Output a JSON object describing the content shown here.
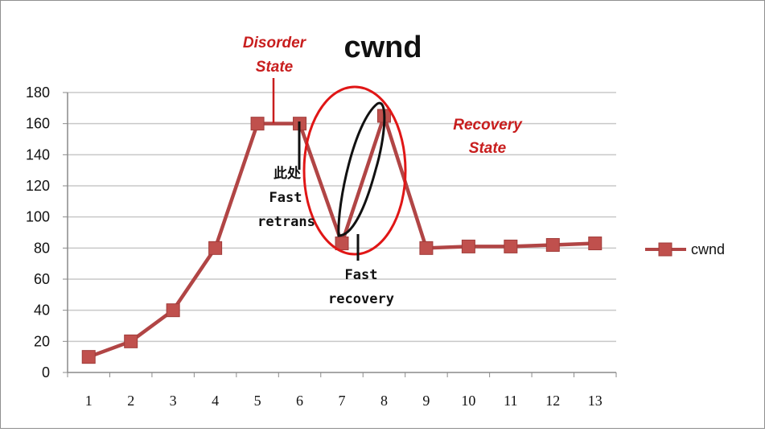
{
  "chart_data": {
    "type": "line",
    "title": "cwnd",
    "xlabel": "",
    "ylabel": "",
    "categories": [
      "1",
      "2",
      "3",
      "4",
      "5",
      "6",
      "7",
      "8",
      "9",
      "10",
      "11",
      "12",
      "13"
    ],
    "series": [
      {
        "name": "cwnd",
        "values": [
          10,
          20,
          40,
          80,
          160,
          160,
          83,
          165,
          80,
          81,
          81,
          82,
          83
        ]
      }
    ],
    "ylim": [
      0,
      180
    ],
    "yticks": [
      0,
      20,
      40,
      60,
      80,
      100,
      120,
      140,
      160,
      180
    ],
    "grid": true,
    "legend": "right",
    "colors": {
      "series": "#b14545",
      "marker": "#c0504d",
      "annotation_red": "#c81e1e",
      "grid": "#c8c8c8"
    },
    "annotations": {
      "disorder": [
        "Disorder",
        "State"
      ],
      "recovery": [
        "Recovery",
        "State"
      ],
      "fast_retrans": [
        "此处",
        "Fast",
        "retrans"
      ],
      "fast_recovery": [
        "Fast",
        "recovery"
      ]
    }
  }
}
